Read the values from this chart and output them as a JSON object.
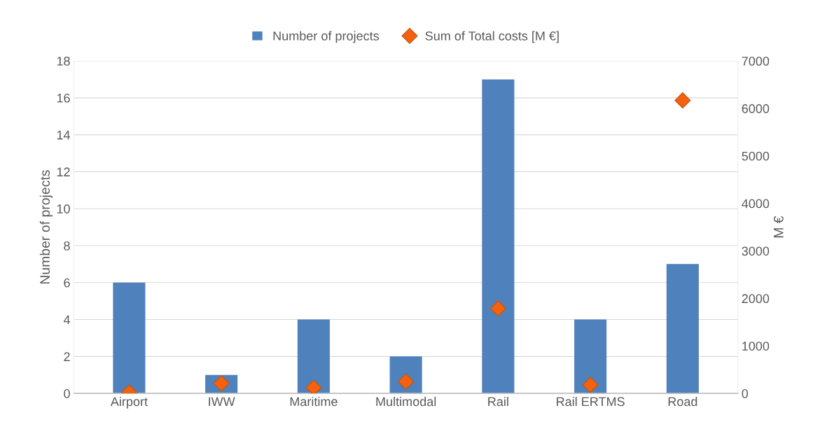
{
  "chart_data": {
    "type": "bar",
    "categories": [
      "Airport",
      "IWW",
      "Maritime",
      "Multimodal",
      "Rail",
      "Rail ERTMS",
      "Road"
    ],
    "series": [
      {
        "name": "Number of projects",
        "color": "#4f81bd",
        "values": [
          6,
          1,
          4,
          2,
          17,
          4,
          7
        ]
      },
      {
        "name": "Sum of Total costs [M €]",
        "type": "scatter",
        "axis": "y2",
        "color": "#f5620f",
        "marker": "diamond",
        "values": [
          20,
          210,
          120,
          250,
          1790,
          180,
          6170
        ]
      }
    ],
    "ylabel": "Number of projects",
    "y2label": "M €",
    "ylim": [
      0,
      18
    ],
    "yticks": [
      0,
      2,
      4,
      6,
      8,
      10,
      12,
      14,
      16,
      18
    ],
    "y2lim": [
      0,
      7000
    ],
    "y2ticks": [
      0,
      1000,
      2000,
      3000,
      4000,
      5000,
      6000,
      7000
    ],
    "grid": "y",
    "legend": "top"
  }
}
